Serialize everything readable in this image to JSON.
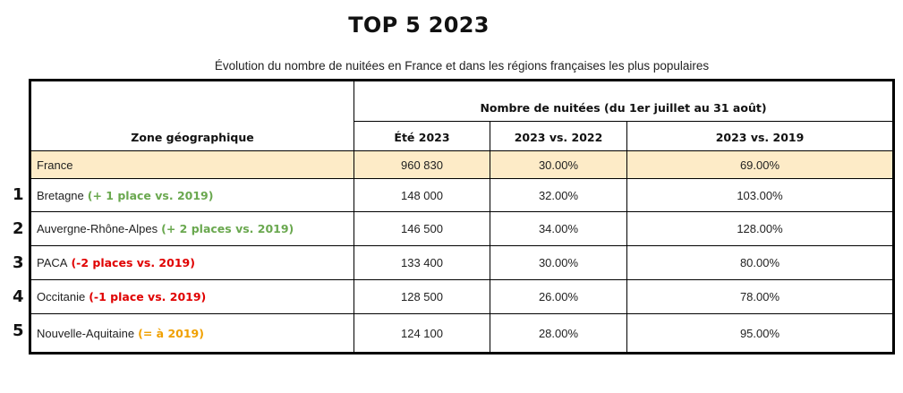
{
  "title": "TOP 5 2023",
  "subtitle": "Évolution du nombre de nuitées en France et dans les régions françaises les plus populaires",
  "table": {
    "group_header": "Nombre de nuitées (du 1er juillet au 31 août)",
    "columns": [
      "Zone géographique",
      "Été 2023",
      "2023 vs. 2022",
      "2023 vs. 2019"
    ],
    "france_row": {
      "zone": "France",
      "ete": "960 830",
      "vs2022": "30.00%",
      "vs2019": "69.00%",
      "highlight_color": "#fdebc7"
    },
    "rows": [
      {
        "rank": "1",
        "zone": "Bretagne",
        "note": "(+ 1 place vs. 2019)",
        "note_color": "#6aa84f",
        "ete": "148 000",
        "vs2022": "32.00%",
        "vs2019": "103.00%"
      },
      {
        "rank": "2",
        "zone": "Auvergne-Rhône-Alpes",
        "note": "(+ 2 places vs. 2019)",
        "note_color": "#6aa84f",
        "ete": "146 500",
        "vs2022": "34.00%",
        "vs2019": "128.00%"
      },
      {
        "rank": "3",
        "zone": "PACA",
        "note": "(-2 places vs. 2019)",
        "note_color": "#e00000",
        "ete": "133 400",
        "vs2022": "30.00%",
        "vs2019": "80.00%"
      },
      {
        "rank": "4",
        "zone": "Occitanie",
        "note": "(-1 place vs. 2019)",
        "note_color": "#e00000",
        "ete": "128 500",
        "vs2022": "26.00%",
        "vs2019": "78.00%"
      },
      {
        "rank": "5",
        "zone": "Nouvelle-Aquitaine",
        "note": "(= à 2019)",
        "note_color": "#f0a000",
        "ete": "124 100",
        "vs2022": "28.00%",
        "vs2019": "95.00%"
      }
    ]
  }
}
